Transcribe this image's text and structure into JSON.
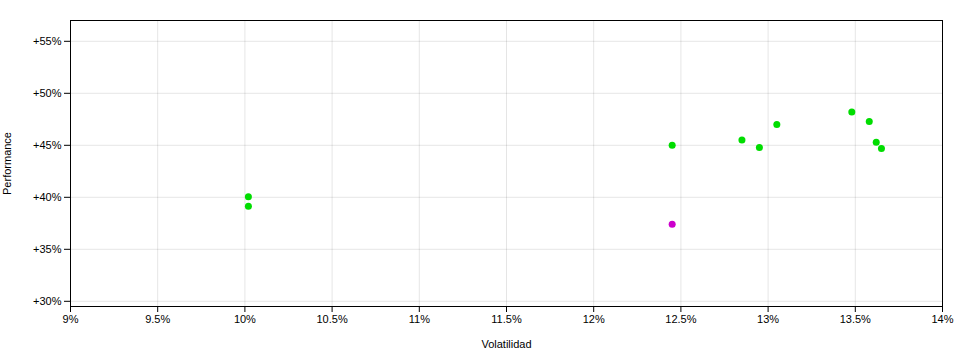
{
  "chart_data": {
    "type": "scatter",
    "xlabel": "Volatilidad",
    "ylabel": "Performance",
    "xlim": [
      0.09,
      0.14
    ],
    "ylim": [
      0.295,
      0.57
    ],
    "xticks": [
      {
        "value": 0.09,
        "label": "9%"
      },
      {
        "value": 0.095,
        "label": "9.5%"
      },
      {
        "value": 0.1,
        "label": "10%"
      },
      {
        "value": 0.105,
        "label": "10.5%"
      },
      {
        "value": 0.11,
        "label": "11%"
      },
      {
        "value": 0.115,
        "label": "11.5%"
      },
      {
        "value": 0.12,
        "label": "12%"
      },
      {
        "value": 0.125,
        "label": "12.5%"
      },
      {
        "value": 0.13,
        "label": "13%"
      },
      {
        "value": 0.135,
        "label": "13.5%"
      },
      {
        "value": 0.14,
        "label": "14%"
      }
    ],
    "yticks": [
      {
        "value": 0.3,
        "label": "+30%"
      },
      {
        "value": 0.35,
        "label": "+35%"
      },
      {
        "value": 0.4,
        "label": "+40%"
      },
      {
        "value": 0.45,
        "label": "+45%"
      },
      {
        "value": 0.5,
        "label": "+50%"
      },
      {
        "value": 0.55,
        "label": "+55%"
      }
    ],
    "grid": true,
    "series": [
      {
        "color": "#00dd00",
        "x": [
          0.1002,
          0.1002,
          0.1245,
          0.1285,
          0.1295,
          0.1305,
          0.1348,
          0.1358,
          0.1362,
          0.1365
        ],
        "values": [
          0.4005,
          0.3915,
          0.45,
          0.455,
          0.448,
          0.47,
          0.482,
          0.473,
          0.453,
          0.447
        ]
      },
      {
        "color": "#cc00cc",
        "x": [
          0.1245
        ],
        "values": [
          0.374
        ]
      }
    ]
  }
}
